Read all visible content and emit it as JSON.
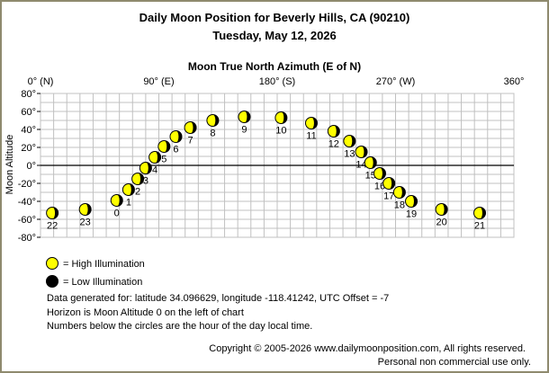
{
  "header": {
    "title": "Daily Moon Position for Beverly Hills, CA (90210)",
    "date": "Tuesday, May 12, 2026"
  },
  "colors": {
    "frame": "#8f8a6e",
    "grid": "#c0c0c0",
    "high_illumination": "#ffff00",
    "low_illumination": "#000000"
  },
  "legend": {
    "high": "= High Illumination",
    "low": "= Low Illumination"
  },
  "info": {
    "line1": "Data generated for: latitude 34.096629, longitude -118.41242, UTC Offset = -7",
    "line2": "Horizon is Moon Altitude 0 on the left of chart",
    "line3": "Numbers below the circles are the hour of the day local time."
  },
  "footer": {
    "copyright": "Copyright © 2005-2026 www.dailymoonposition.com, All rights reserved.",
    "notice": "Personal non commercial use only."
  },
  "chart_data": {
    "type": "scatter",
    "title": "Moon True North Azimuth (E of N)",
    "xlabel": "Moon True North Azimuth (E of N)",
    "ylabel": "Moon Altitude",
    "xlim": [
      0,
      360
    ],
    "ylim": [
      -80,
      80
    ],
    "x_ticks": [
      {
        "value": 0,
        "label": "0° (N)"
      },
      {
        "value": 90,
        "label": "90° (E)"
      },
      {
        "value": 180,
        "label": "180° (S)"
      },
      {
        "value": 270,
        "label": "270° (W)"
      },
      {
        "value": 360,
        "label": "360°"
      }
    ],
    "y_ticks": [
      {
        "value": 80,
        "label": "80°"
      },
      {
        "value": 60,
        "label": "60°"
      },
      {
        "value": 40,
        "label": "40°"
      },
      {
        "value": 20,
        "label": "20°"
      },
      {
        "value": 0,
        "label": "0°"
      },
      {
        "value": -20,
        "label": "-20°"
      },
      {
        "value": -40,
        "label": "-40°"
      },
      {
        "value": -60,
        "label": "-60°"
      },
      {
        "value": -80,
        "label": "-80°"
      }
    ],
    "grid": true,
    "points": [
      {
        "hour": "0",
        "azimuth": 58,
        "altitude": -39
      },
      {
        "hour": "1",
        "azimuth": 67,
        "altitude": -27
      },
      {
        "hour": "2",
        "azimuth": 74,
        "altitude": -15
      },
      {
        "hour": "3",
        "azimuth": 80,
        "altitude": -3
      },
      {
        "hour": "4",
        "azimuth": 87,
        "altitude": 9
      },
      {
        "hour": "5",
        "azimuth": 94,
        "altitude": 21
      },
      {
        "hour": "6",
        "azimuth": 103,
        "altitude": 32
      },
      {
        "hour": "7",
        "azimuth": 114,
        "altitude": 42
      },
      {
        "hour": "8",
        "azimuth": 131,
        "altitude": 50
      },
      {
        "hour": "9",
        "azimuth": 155,
        "altitude": 54
      },
      {
        "hour": "10",
        "azimuth": 183,
        "altitude": 53
      },
      {
        "hour": "11",
        "azimuth": 206,
        "altitude": 47
      },
      {
        "hour": "12",
        "azimuth": 223,
        "altitude": 38
      },
      {
        "hour": "13",
        "azimuth": 235,
        "altitude": 27
      },
      {
        "hour": "14",
        "azimuth": 244,
        "altitude": 15
      },
      {
        "hour": "15",
        "azimuth": 251,
        "altitude": 3
      },
      {
        "hour": "16",
        "azimuth": 258,
        "altitude": -9
      },
      {
        "hour": "17",
        "azimuth": 265,
        "altitude": -20
      },
      {
        "hour": "18",
        "azimuth": 273,
        "altitude": -30
      },
      {
        "hour": "19",
        "azimuth": 282,
        "altitude": -40
      },
      {
        "hour": "20",
        "azimuth": 305,
        "altitude": -49
      },
      {
        "hour": "21",
        "azimuth": 334,
        "altitude": -53
      },
      {
        "hour": "22",
        "azimuth": 9,
        "altitude": -53
      },
      {
        "hour": "23",
        "azimuth": 34,
        "altitude": -49
      }
    ]
  }
}
